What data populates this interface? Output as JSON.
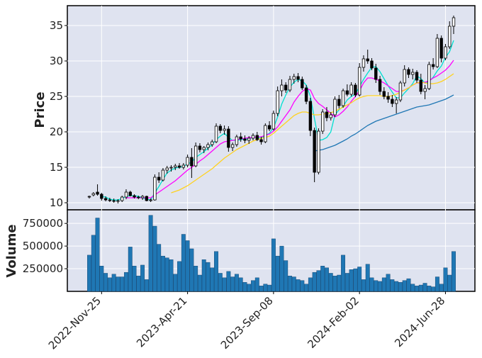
{
  "chart_data": [
    {
      "type": "candlestick",
      "ylabel": "Price",
      "yticks": [
        10,
        15,
        20,
        25,
        30,
        35
      ],
      "ylim": [
        9.0,
        37.8
      ],
      "grid": true,
      "moving_average_colors": [
        "#00e0d0",
        "#ff00ff",
        "#ffd21f",
        "#1f77b4"
      ],
      "candle_colors": {
        "up": "#ffffff",
        "down": "#000000"
      },
      "candles": [
        [
          10.8,
          11.0,
          10.6,
          10.9
        ],
        [
          11.1,
          11.5,
          10.9,
          11.3
        ],
        [
          11.5,
          12.6,
          11.0,
          11.2
        ],
        [
          11.2,
          11.4,
          10.3,
          10.6
        ],
        [
          10.6,
          10.9,
          10.2,
          10.4
        ],
        [
          10.4,
          10.7,
          10.1,
          10.3
        ],
        [
          10.3,
          10.6,
          10.0,
          10.2
        ],
        [
          10.2,
          10.5,
          9.9,
          10.3
        ],
        [
          10.3,
          11.0,
          10.1,
          10.8
        ],
        [
          10.8,
          11.9,
          10.5,
          11.5
        ],
        [
          11.5,
          11.7,
          10.9,
          11.0
        ],
        [
          11.0,
          11.2,
          10.6,
          10.8
        ],
        [
          10.8,
          11.0,
          10.5,
          10.7
        ],
        [
          10.7,
          11.1,
          10.4,
          10.9
        ],
        [
          10.9,
          11.0,
          10.2,
          10.3
        ],
        [
          10.3,
          10.6,
          10.1,
          10.4
        ],
        [
          10.4,
          14.0,
          10.3,
          13.6
        ],
        [
          13.6,
          14.3,
          12.8,
          13.2
        ],
        [
          13.2,
          14.9,
          13.0,
          14.6
        ],
        [
          14.6,
          15.2,
          14.1,
          14.9
        ],
        [
          14.9,
          15.3,
          14.4,
          15.0
        ],
        [
          15.0,
          15.5,
          14.6,
          15.2
        ],
        [
          15.2,
          15.6,
          14.8,
          15.0
        ],
        [
          15.0,
          15.6,
          14.7,
          15.3
        ],
        [
          15.3,
          16.8,
          15.0,
          16.4
        ],
        [
          16.4,
          17.7,
          13.5,
          15.2
        ],
        [
          15.2,
          18.5,
          15.0,
          18.0
        ],
        [
          18.0,
          18.4,
          17.1,
          17.5
        ],
        [
          17.5,
          18.0,
          17.0,
          17.8
        ],
        [
          17.8,
          18.5,
          17.4,
          18.2
        ],
        [
          18.2,
          18.9,
          17.9,
          18.6
        ],
        [
          18.6,
          21.2,
          18.4,
          20.8
        ],
        [
          20.8,
          21.1,
          19.8,
          20.2
        ],
        [
          20.2,
          20.9,
          19.6,
          20.4
        ],
        [
          20.4,
          20.8,
          17.2,
          17.8
        ],
        [
          17.8,
          18.5,
          17.3,
          18.2
        ],
        [
          18.2,
          19.6,
          17.9,
          19.3
        ],
        [
          19.3,
          19.9,
          18.6,
          19.0
        ],
        [
          19.0,
          19.5,
          18.4,
          18.8
        ],
        [
          18.8,
          19.4,
          18.3,
          19.1
        ],
        [
          19.1,
          19.8,
          18.8,
          19.5
        ],
        [
          19.5,
          20.0,
          18.7,
          18.9
        ],
        [
          18.9,
          19.3,
          18.2,
          18.6
        ],
        [
          18.6,
          21.2,
          18.4,
          20.9
        ],
        [
          20.9,
          21.5,
          20.1,
          20.4
        ],
        [
          20.4,
          23.0,
          20.2,
          22.6
        ],
        [
          22.6,
          26.4,
          22.2,
          25.8
        ],
        [
          25.8,
          27.4,
          25.0,
          26.6
        ],
        [
          26.6,
          27.0,
          25.5,
          25.9
        ],
        [
          25.9,
          27.9,
          25.6,
          27.4
        ],
        [
          27.4,
          28.2,
          26.8,
          27.8
        ],
        [
          27.8,
          28.3,
          27.0,
          27.4
        ],
        [
          27.4,
          27.8,
          25.9,
          26.2
        ],
        [
          26.2,
          26.6,
          23.9,
          24.3
        ],
        [
          24.3,
          24.8,
          19.4,
          20.2
        ],
        [
          20.2,
          20.6,
          12.9,
          14.3
        ],
        [
          14.3,
          20.5,
          14.0,
          20.1
        ],
        [
          20.1,
          23.2,
          19.7,
          22.8
        ],
        [
          22.8,
          23.5,
          21.5,
          22.0
        ],
        [
          22.0,
          22.8,
          21.6,
          22.4
        ],
        [
          22.4,
          25.0,
          22.1,
          24.6
        ],
        [
          24.6,
          25.2,
          23.3,
          23.7
        ],
        [
          23.7,
          26.1,
          23.4,
          25.8
        ],
        [
          25.8,
          26.7,
          25.0,
          25.3
        ],
        [
          25.3,
          27.0,
          25.0,
          26.6
        ],
        [
          26.6,
          26.9,
          24.9,
          25.2
        ],
        [
          25.2,
          29.7,
          25.0,
          29.1
        ],
        [
          29.1,
          30.8,
          28.5,
          30.3
        ],
        [
          30.3,
          31.6,
          29.6,
          30.0
        ],
        [
          30.0,
          30.4,
          28.7,
          29.0
        ],
        [
          29.0,
          29.6,
          26.9,
          27.4
        ],
        [
          27.4,
          27.9,
          25.2,
          25.7
        ],
        [
          25.7,
          26.3,
          24.6,
          25.0
        ],
        [
          25.0,
          25.6,
          24.1,
          24.6
        ],
        [
          24.6,
          25.2,
          23.5,
          24.0
        ],
        [
          24.0,
          24.9,
          22.6,
          24.5
        ],
        [
          24.5,
          27.2,
          24.2,
          26.9
        ],
        [
          26.9,
          29.4,
          26.4,
          28.8
        ],
        [
          28.8,
          29.1,
          27.6,
          28.1
        ],
        [
          28.1,
          28.9,
          27.4,
          28.4
        ],
        [
          28.4,
          28.7,
          26.9,
          27.3
        ],
        [
          27.3,
          28.2,
          25.3,
          25.7
        ],
        [
          25.7,
          26.6,
          24.6,
          26.1
        ],
        [
          26.1,
          29.9,
          25.9,
          29.5
        ],
        [
          29.5,
          30.4,
          28.8,
          29.2
        ],
        [
          29.2,
          33.8,
          29.0,
          33.2
        ],
        [
          33.2,
          33.6,
          29.8,
          30.4
        ],
        [
          30.4,
          32.4,
          30.1,
          32.0
        ],
        [
          32.0,
          35.6,
          31.7,
          34.9
        ],
        [
          34.9,
          36.4,
          33.8,
          36.1
        ]
      ],
      "moving_averages": [
        [
          null,
          null,
          null,
          null,
          null,
          null,
          null,
          null,
          null,
          null,
          null,
          null,
          null,
          null,
          null,
          null,
          null,
          null,
          null,
          null,
          null,
          null,
          null,
          null,
          null,
          null,
          null,
          null,
          null,
          null,
          null,
          null,
          null,
          null,
          null,
          null,
          null,
          null,
          null,
          null,
          null,
          null,
          null,
          null,
          null,
          null,
          null,
          null,
          null,
          null,
          null,
          null,
          null,
          null,
          null,
          null,
          17.3,
          17.5,
          17.8,
          18.1,
          18.5,
          18.9,
          19.3,
          19.7,
          20.1,
          20.6,
          21.0,
          21.5,
          21.8,
          22.1,
          22.4,
          22.6,
          22.8,
          23.0,
          23.2,
          23.4,
          23.6,
          23.8,
          24.0,
          24.2,
          24.4,
          24.6,
          24.8,
          25.0,
          25.2,
          25.4,
          25.6,
          25.8,
          26.0,
          26.3
        ]
      ],
      "ma_series": [
        {
          "values": [
            null,
            null,
            null,
            10.9,
            10.8,
            10.5,
            10.4,
            10.4,
            10.6,
            10.9,
            11.0,
            11.0,
            10.9,
            10.7,
            10.5,
            10.4,
            11.4,
            12.3,
            13.3,
            14.2,
            14.6,
            14.9,
            15.0,
            15.1,
            15.5,
            15.7,
            16.4,
            16.8,
            17.2,
            17.7,
            18.2,
            18.9,
            19.4,
            19.8,
            19.2,
            18.8,
            18.8,
            18.9,
            19.0,
            19.0,
            19.3,
            19.2,
            19.1,
            19.5,
            19.8,
            20.6,
            22.1,
            23.9,
            25.2,
            26.3,
            27.0,
            27.4,
            27.2,
            26.6,
            25.0,
            21.9,
            18.8,
            18.9,
            19.2,
            20.0,
            22.4,
            23.1,
            23.6,
            24.5,
            25.0,
            25.3,
            26.4,
            27.4,
            28.3,
            29.1,
            29.2,
            28.5,
            27.5,
            26.5,
            25.6,
            24.8,
            24.8,
            25.5,
            26.1,
            26.8,
            27.9,
            27.5,
            26.9,
            27.1,
            27.7,
            28.6,
            29.3,
            30.5,
            31.3,
            32.9
          ]
        },
        {
          "values": [
            null,
            null,
            null,
            null,
            null,
            null,
            null,
            null,
            null,
            10.7,
            10.7,
            10.7,
            10.7,
            10.7,
            10.7,
            10.7,
            11.1,
            11.5,
            11.9,
            12.3,
            12.7,
            13.1,
            13.6,
            14.1,
            14.6,
            15.0,
            15.4,
            15.9,
            16.3,
            16.8,
            17.3,
            17.8,
            18.3,
            18.6,
            18.7,
            18.8,
            18.9,
            19.0,
            19.1,
            19.2,
            19.2,
            19.3,
            19.3,
            19.5,
            19.7,
            20.1,
            20.7,
            21.5,
            22.3,
            23.1,
            24.2,
            25.0,
            25.7,
            26.1,
            25.9,
            24.7,
            24.0,
            23.6,
            23.1,
            22.6,
            22.1,
            22.4,
            22.9,
            23.5,
            24.3,
            25.0,
            25.8,
            26.9,
            27.6,
            27.6,
            27.4,
            27.2,
            26.9,
            26.5,
            26.1,
            25.7,
            25.7,
            25.9,
            26.2,
            26.6,
            26.9,
            26.9,
            27.0,
            27.2,
            27.6,
            27.9,
            28.3,
            28.7,
            29.3,
            30.1
          ]
        },
        {
          "values": [
            null,
            null,
            null,
            null,
            null,
            null,
            null,
            null,
            null,
            null,
            null,
            null,
            null,
            null,
            null,
            null,
            null,
            null,
            null,
            null,
            11.4,
            11.6,
            11.8,
            12.1,
            12.4,
            12.8,
            13.2,
            13.6,
            14.0,
            14.4,
            14.8,
            15.3,
            15.8,
            16.3,
            16.7,
            17.1,
            17.5,
            17.8,
            18.1,
            18.4,
            18.7,
            18.9,
            19.1,
            19.2,
            19.4,
            19.8,
            20.3,
            20.8,
            21.3,
            21.8,
            22.3,
            22.6,
            22.8,
            22.8,
            22.6,
            22.4,
            22.4,
            22.5,
            22.6,
            22.7,
            22.9,
            23.2,
            23.5,
            23.8,
            24.1,
            24.5,
            24.8,
            25.0,
            25.1,
            25.1,
            25.1,
            25.1,
            25.0,
            25.0,
            25.1,
            25.3,
            25.6,
            25.9,
            26.2,
            26.6,
            26.9,
            27.0,
            26.9,
            26.8,
            26.8,
            26.9,
            27.1,
            27.4,
            27.8,
            28.2
          ]
        },
        {
          "values": [
            null,
            null,
            null,
            null,
            null,
            null,
            null,
            null,
            null,
            null,
            null,
            null,
            null,
            null,
            null,
            null,
            null,
            null,
            null,
            null,
            null,
            null,
            null,
            null,
            null,
            null,
            null,
            null,
            null,
            null,
            null,
            null,
            null,
            null,
            null,
            null,
            null,
            null,
            null,
            null,
            null,
            null,
            null,
            null,
            null,
            null,
            null,
            null,
            null,
            null,
            null,
            null,
            null,
            null,
            null,
            17.3,
            17.4,
            17.5,
            17.7,
            17.9,
            18.1,
            18.4,
            18.7,
            19.0,
            19.4,
            19.7,
            20.1,
            20.5,
            20.9,
            21.2,
            21.5,
            21.7,
            21.9,
            22.1,
            22.3,
            22.5,
            22.7,
            22.9,
            23.1,
            23.3,
            23.5,
            23.6,
            23.7,
            23.8,
            24.0,
            24.2,
            24.4,
            24.6,
            24.9,
            25.2
          ]
        }
      ]
    },
    {
      "type": "bar",
      "ylabel": "Volume",
      "yticks": [
        250000,
        500000,
        750000
      ],
      "ytick_labels": [
        "250000",
        "500000",
        "750000"
      ],
      "ylim": [
        0,
        900000
      ],
      "x_tick_labels": [
        "2022-Nov-25",
        "2023-Apr-21",
        "2023-Sep-08",
        "2024-Feb-02",
        "2024-Jun-28"
      ],
      "x_tick_indices": [
        3,
        24,
        45,
        66,
        87
      ],
      "bar_color": "#1f77b4",
      "values": [
        400000,
        620000,
        810000,
        280000,
        200000,
        150000,
        190000,
        160000,
        160000,
        210000,
        490000,
        280000,
        170000,
        290000,
        130000,
        840000,
        720000,
        520000,
        390000,
        370000,
        350000,
        190000,
        330000,
        630000,
        560000,
        470000,
        280000,
        180000,
        350000,
        320000,
        260000,
        440000,
        200000,
        150000,
        220000,
        160000,
        190000,
        150000,
        100000,
        80000,
        120000,
        150000,
        60000,
        80000,
        70000,
        580000,
        390000,
        500000,
        340000,
        170000,
        160000,
        130000,
        120000,
        80000,
        150000,
        210000,
        230000,
        280000,
        260000,
        200000,
        170000,
        180000,
        400000,
        200000,
        240000,
        250000,
        270000,
        130000,
        300000,
        150000,
        120000,
        110000,
        150000,
        190000,
        130000,
        110000,
        100000,
        120000,
        140000,
        80000,
        60000,
        70000,
        90000,
        60000,
        50000,
        160000,
        80000,
        260000,
        180000,
        440000
      ]
    }
  ]
}
